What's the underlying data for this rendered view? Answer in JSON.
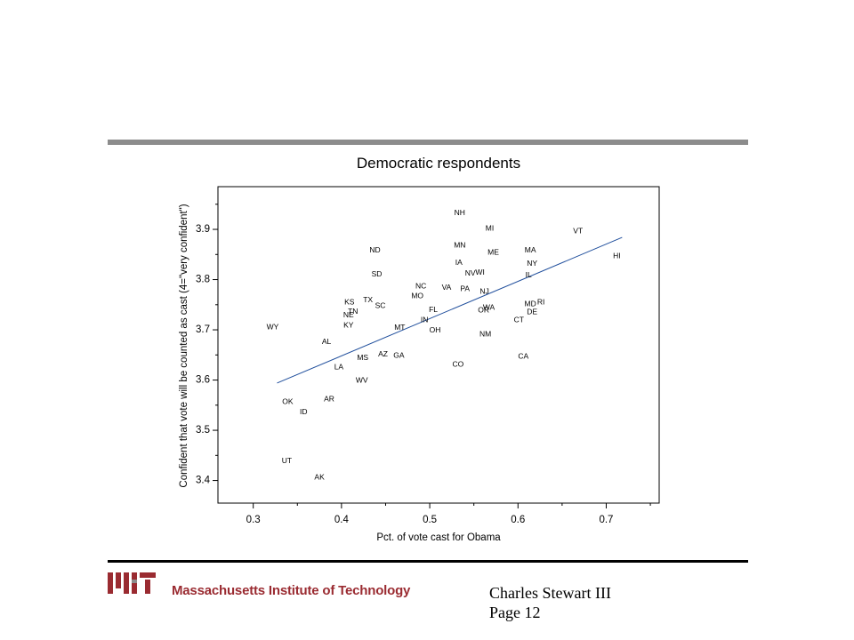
{
  "footer": {
    "institution": "Massachusetts Institute of Technology",
    "author": "Charles Stewart III",
    "page": "Page 12",
    "brand_color": "#9a2b31"
  },
  "chart_data": {
    "type": "scatter",
    "title": "Democratic respondents",
    "xlabel": "Pct. of vote cast for Obama",
    "ylabel": "Confident that vote will be counted as cast (4=\"very confident\")",
    "xlim": [
      0.26,
      0.76
    ],
    "ylim": [
      3.355,
      3.985
    ],
    "xticks": [
      "0.3",
      "0.4",
      "0.5",
      "0.6",
      "0.7"
    ],
    "xtick_values": [
      0.3,
      0.4,
      0.5,
      0.6,
      0.7
    ],
    "yticks": [
      "3.4",
      "3.5",
      "3.6",
      "3.7",
      "3.8",
      "3.9"
    ],
    "ytick_values": [
      3.4,
      3.5,
      3.6,
      3.7,
      3.8,
      3.9
    ],
    "grid": false,
    "fit_line": {
      "x": [
        0.327,
        0.718
      ],
      "y": [
        3.594,
        3.884
      ],
      "color": "#1f4e9c"
    },
    "points": [
      {
        "label": "NH",
        "x": 0.534,
        "y": 3.934
      },
      {
        "label": "MI",
        "x": 0.568,
        "y": 3.903
      },
      {
        "label": "VT",
        "x": 0.668,
        "y": 3.897
      },
      {
        "label": "MN",
        "x": 0.534,
        "y": 3.869
      },
      {
        "label": "ND",
        "x": 0.438,
        "y": 3.859
      },
      {
        "label": "ME",
        "x": 0.572,
        "y": 3.855
      },
      {
        "label": "MA",
        "x": 0.614,
        "y": 3.859
      },
      {
        "label": "HI",
        "x": 0.712,
        "y": 3.848
      },
      {
        "label": "IA",
        "x": 0.533,
        "y": 3.835
      },
      {
        "label": "NY",
        "x": 0.616,
        "y": 3.833
      },
      {
        "label": "NV",
        "x": 0.546,
        "y": 3.813
      },
      {
        "label": "WI",
        "x": 0.557,
        "y": 3.815
      },
      {
        "label": "IL",
        "x": 0.612,
        "y": 3.81
      },
      {
        "label": "SD",
        "x": 0.44,
        "y": 3.812
      },
      {
        "label": "NC",
        "x": 0.49,
        "y": 3.788
      },
      {
        "label": "VA",
        "x": 0.519,
        "y": 3.785
      },
      {
        "label": "PA",
        "x": 0.54,
        "y": 3.782
      },
      {
        "label": "NJ",
        "x": 0.562,
        "y": 3.777
      },
      {
        "label": "MO",
        "x": 0.486,
        "y": 3.768
      },
      {
        "label": "TX",
        "x": 0.43,
        "y": 3.76
      },
      {
        "label": "KS",
        "x": 0.409,
        "y": 3.756
      },
      {
        "label": "SC",
        "x": 0.444,
        "y": 3.749
      },
      {
        "label": "RI",
        "x": 0.626,
        "y": 3.756
      },
      {
        "label": "MD",
        "x": 0.614,
        "y": 3.752
      },
      {
        "label": "FL",
        "x": 0.504,
        "y": 3.741
      },
      {
        "label": "OR",
        "x": 0.561,
        "y": 3.74
      },
      {
        "label": "WA",
        "x": 0.567,
        "y": 3.745
      },
      {
        "label": "TN",
        "x": 0.413,
        "y": 3.737
      },
      {
        "label": "NE",
        "x": 0.408,
        "y": 3.73
      },
      {
        "label": "DE",
        "x": 0.616,
        "y": 3.736
      },
      {
        "label": "CT",
        "x": 0.601,
        "y": 3.72
      },
      {
        "label": "IN",
        "x": 0.494,
        "y": 3.72
      },
      {
        "label": "KY",
        "x": 0.408,
        "y": 3.71
      },
      {
        "label": "WY",
        "x": 0.322,
        "y": 3.706
      },
      {
        "label": "MT",
        "x": 0.466,
        "y": 3.705
      },
      {
        "label": "OH",
        "x": 0.506,
        "y": 3.7
      },
      {
        "label": "NM",
        "x": 0.563,
        "y": 3.692
      },
      {
        "label": "AL",
        "x": 0.383,
        "y": 3.677
      },
      {
        "label": "AZ",
        "x": 0.447,
        "y": 3.652
      },
      {
        "label": "GA",
        "x": 0.465,
        "y": 3.65
      },
      {
        "label": "MS",
        "x": 0.424,
        "y": 3.645
      },
      {
        "label": "CA",
        "x": 0.606,
        "y": 3.648
      },
      {
        "label": "CO",
        "x": 0.532,
        "y": 3.632
      },
      {
        "label": "LA",
        "x": 0.397,
        "y": 3.627
      },
      {
        "label": "WV",
        "x": 0.423,
        "y": 3.6
      },
      {
        "label": "AR",
        "x": 0.386,
        "y": 3.563
      },
      {
        "label": "OK",
        "x": 0.339,
        "y": 3.558
      },
      {
        "label": "ID",
        "x": 0.357,
        "y": 3.537
      },
      {
        "label": "UT",
        "x": 0.338,
        "y": 3.44
      },
      {
        "label": "AK",
        "x": 0.375,
        "y": 3.407
      }
    ]
  }
}
